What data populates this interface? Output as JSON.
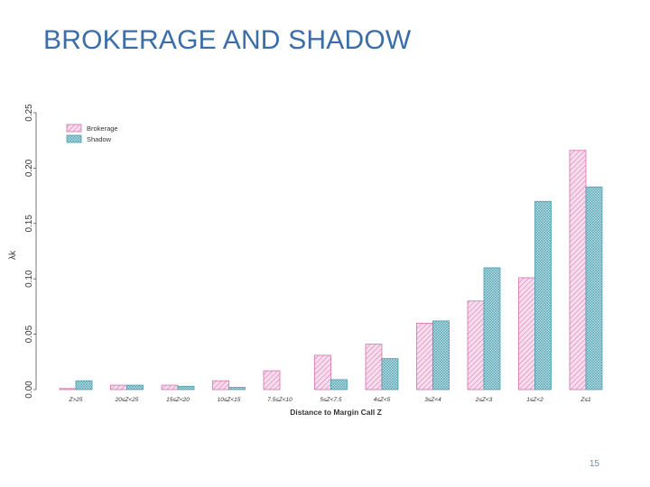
{
  "slide": {
    "title": "BROKERAGE AND SHADOW",
    "page_number": "15"
  },
  "colors": {
    "title": "#3b6ea8",
    "brokerage_stroke": "#d670b0",
    "brokerage_fill": "#f6dcec",
    "shadow_stroke": "#4c9fae",
    "shadow_fill": "#bfe0e6",
    "axis": "#555555",
    "text": "#333333"
  },
  "chart_data": {
    "type": "bar",
    "title": "",
    "xlabel": "Distance to Margin Call Z",
    "ylabel": "λk",
    "ylim": [
      0,
      0.25
    ],
    "yticks": [
      "0.00",
      "0.05",
      "0.10",
      "0.15",
      "0.20",
      "0.25"
    ],
    "grid": false,
    "legend_position": "top-left",
    "categories": [
      "Z>25",
      "20≤Z<25",
      "15≤Z<20",
      "10≤Z<15",
      "7.5≤Z<10",
      "5≤Z<7.5",
      "4≤Z<5",
      "3≤Z<4",
      "2≤Z<3",
      "1≤Z<2",
      "Z≤1"
    ],
    "tick_labels": [
      "Z>25",
      "20≤Z<25",
      "15≤Z<20",
      "10≤Z<15",
      "7.5≤Z<10",
      "5≤Z<7.5",
      "4≤Z<5",
      "3≤Z<4",
      "2≤Z<3",
      "1≤Z<2",
      "Z≤1"
    ],
    "series": [
      {
        "name": "Brokerage",
        "values": [
          0.001,
          0.004,
          0.004,
          0.008,
          0.017,
          0.031,
          0.041,
          0.06,
          0.08,
          0.101,
          0.216
        ]
      },
      {
        "name": "Shadow",
        "values": [
          0.008,
          0.004,
          0.003,
          0.002,
          0.0,
          0.009,
          0.028,
          0.062,
          0.11,
          0.17,
          0.183
        ]
      }
    ]
  }
}
